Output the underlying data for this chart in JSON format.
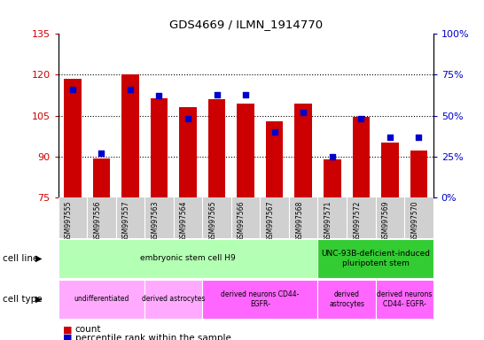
{
  "title": "GDS4669 / ILMN_1914770",
  "samples": [
    "GSM997555",
    "GSM997556",
    "GSM997557",
    "GSM997563",
    "GSM997564",
    "GSM997565",
    "GSM997566",
    "GSM997567",
    "GSM997568",
    "GSM997571",
    "GSM997572",
    "GSM997569",
    "GSM997570"
  ],
  "counts": [
    118.5,
    89.2,
    120.0,
    111.5,
    108.0,
    111.0,
    109.5,
    103.0,
    109.5,
    89.0,
    104.5,
    95.0,
    92.0
  ],
  "percentiles": [
    66,
    27,
    66,
    62,
    48,
    63,
    63,
    40,
    52,
    25,
    48,
    37,
    37
  ],
  "ylim_left": [
    75,
    135
  ],
  "ylim_right": [
    0,
    100
  ],
  "yticks_left": [
    75,
    90,
    105,
    120,
    135
  ],
  "yticks_right": [
    0,
    25,
    50,
    75,
    100
  ],
  "left_color": "#cc0000",
  "right_color": "#0000cc",
  "bar_color": "#cc0000",
  "dot_color": "#0000cc",
  "bar_bottom": 75,
  "cell_line_groups": [
    {
      "label": "embryonic stem cell H9",
      "start": 0,
      "end": 9,
      "color": "#b3ffb3"
    },
    {
      "label": "UNC-93B-deficient-induced\npluripotent stem",
      "start": 9,
      "end": 13,
      "color": "#33cc33"
    }
  ],
  "cell_type_groups": [
    {
      "label": "undifferentiated",
      "start": 0,
      "end": 3,
      "color": "#ffaaff"
    },
    {
      "label": "derived astrocytes",
      "start": 3,
      "end": 5,
      "color": "#ffaaff"
    },
    {
      "label": "derived neurons CD44-\nEGFR-",
      "start": 5,
      "end": 9,
      "color": "#ff66ff"
    },
    {
      "label": "derived\nastrocytes",
      "start": 9,
      "end": 11,
      "color": "#ff66ff"
    },
    {
      "label": "derived neurons\nCD44- EGFR-",
      "start": 11,
      "end": 13,
      "color": "#ff66ff"
    }
  ],
  "legend_count_label": "count",
  "legend_pct_label": "percentile rank within the sample",
  "tick_label_color_left": "#cc0000",
  "tick_label_color_right": "#0000cc",
  "grid_yticks": [
    90,
    105,
    120
  ],
  "bar_width": 0.6,
  "sample_bg_color": "#d0d0d0"
}
